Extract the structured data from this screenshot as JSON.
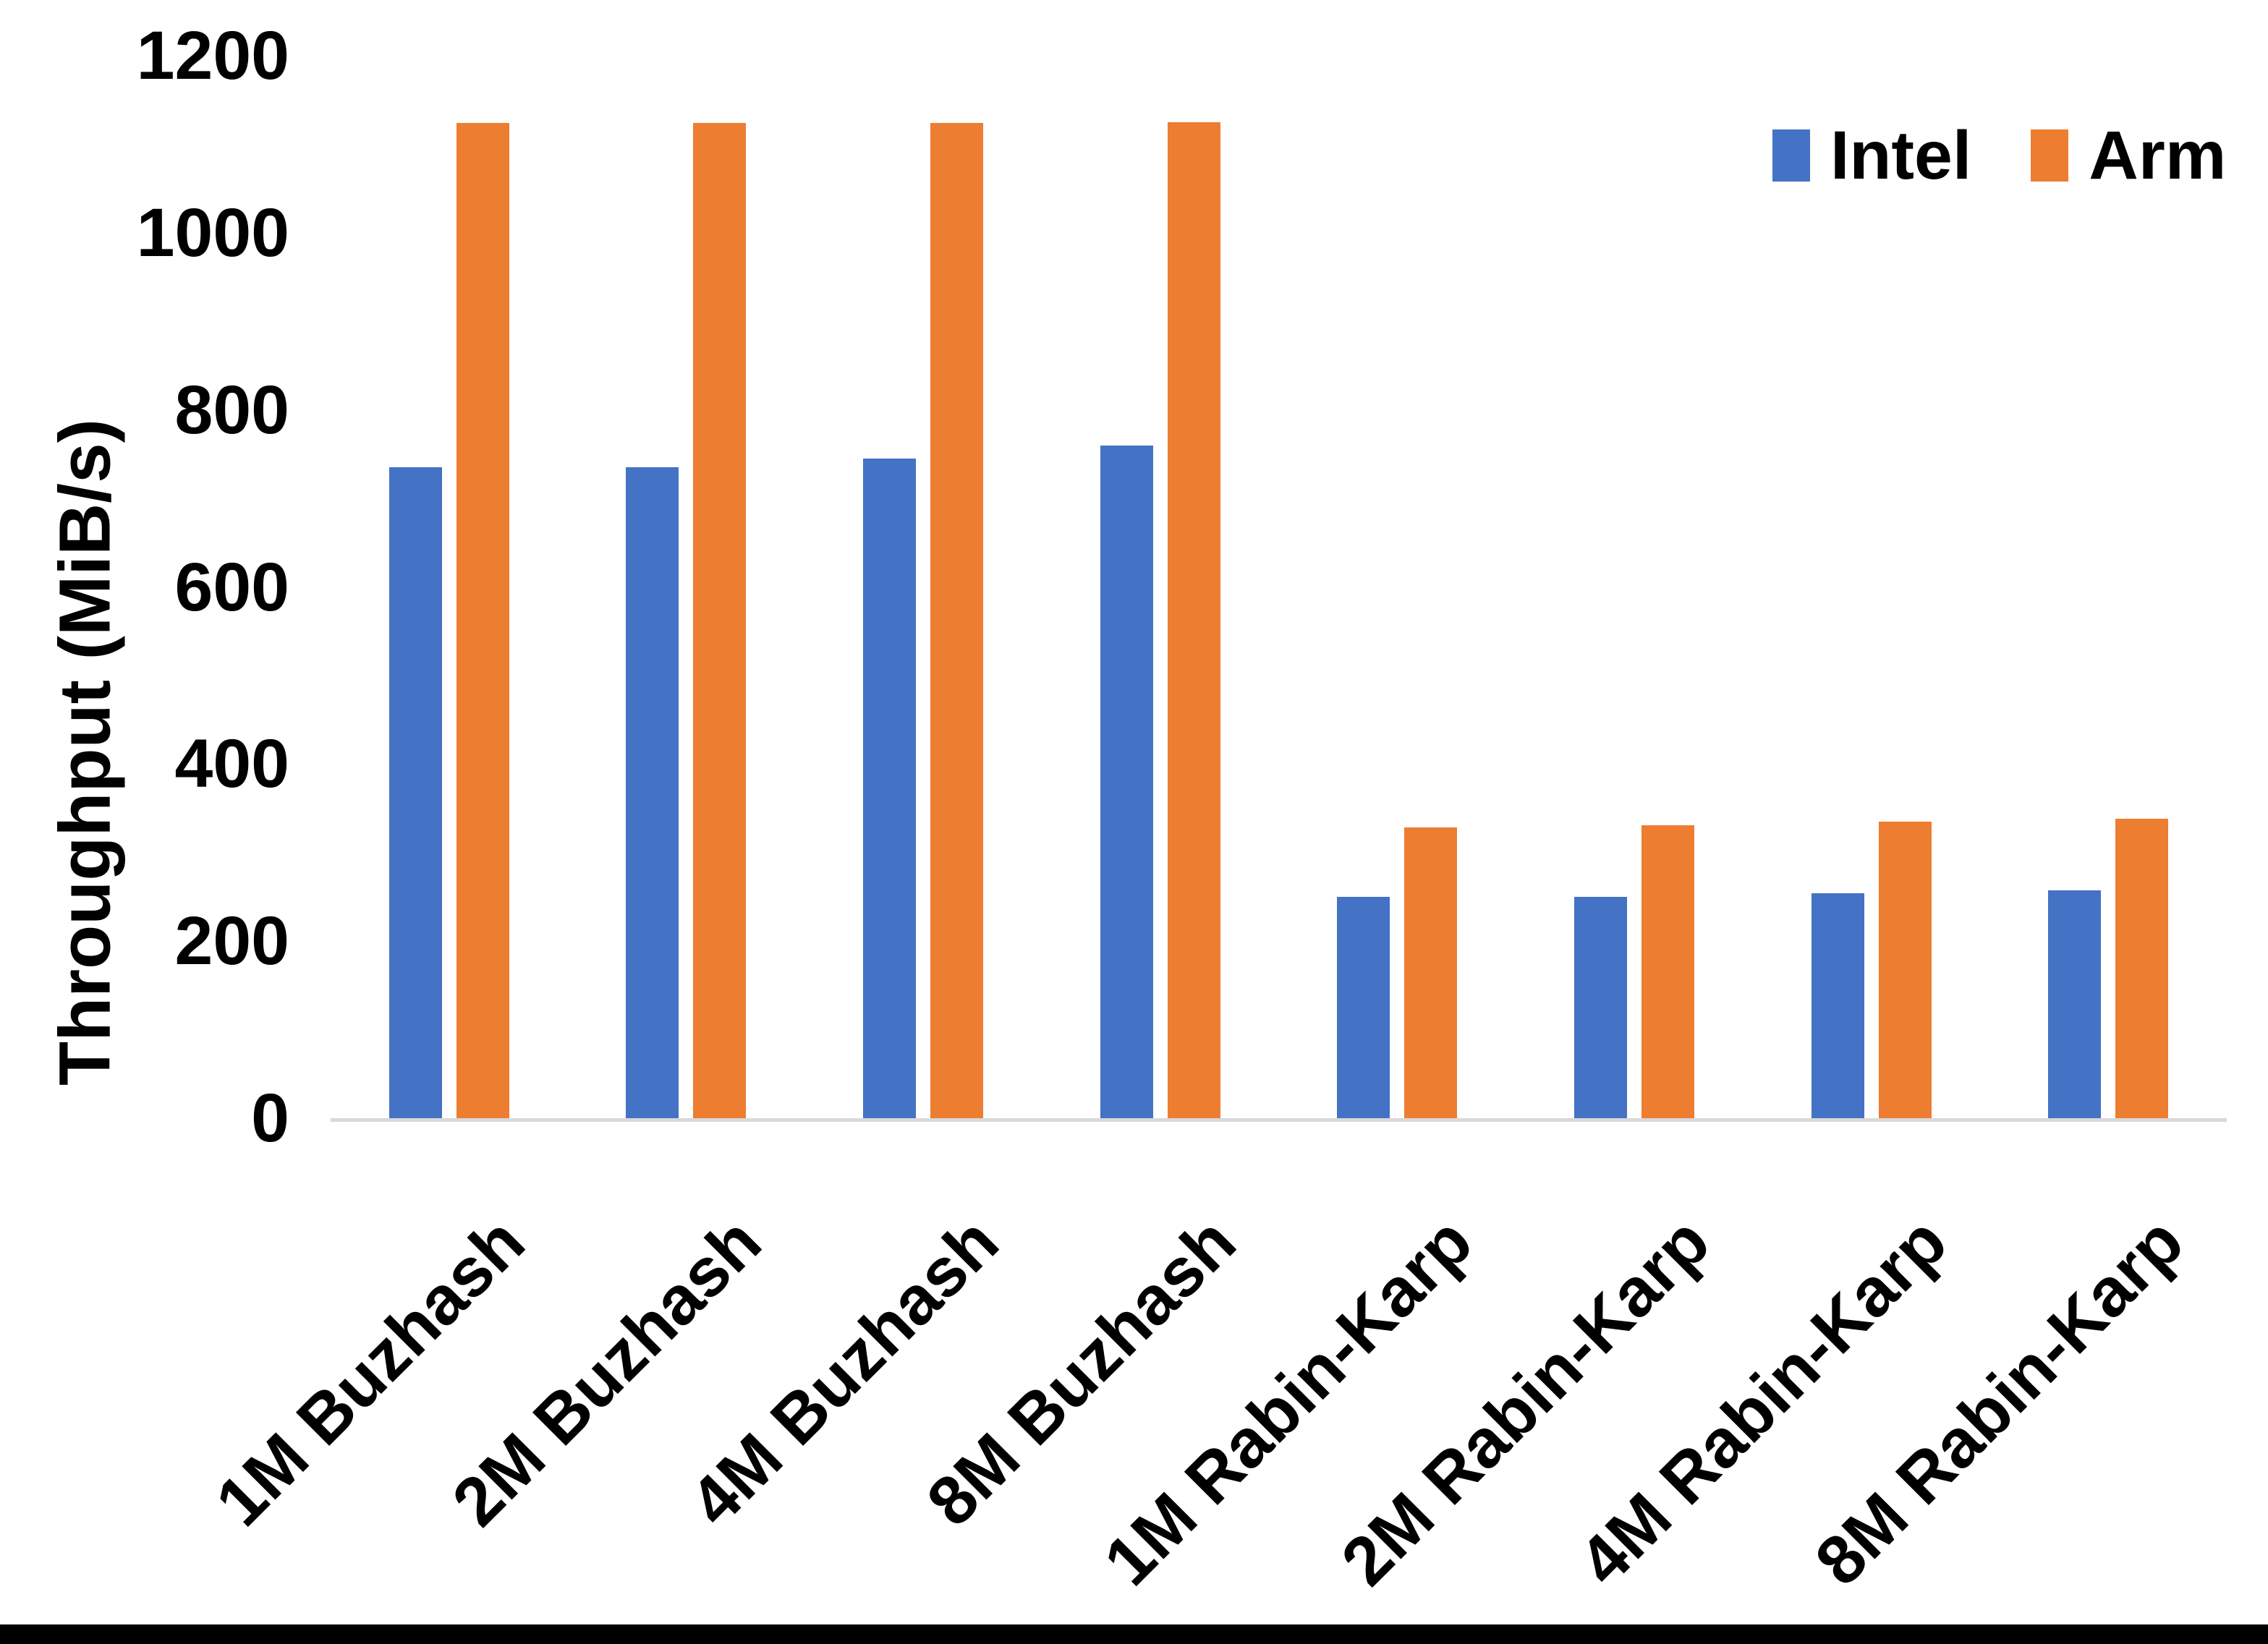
{
  "chart_data": {
    "type": "bar",
    "title": "",
    "xlabel": "",
    "ylabel": "Throughput (MiB/s)",
    "ylim": [
      0,
      1200
    ],
    "yticks": [
      0,
      200,
      400,
      600,
      800,
      1000,
      1200
    ],
    "grid": false,
    "legend_position": "top-right",
    "categories": [
      "1M Buzhash",
      "2M Buzhash",
      "4M Buzhash",
      "8M Buzhash",
      "1M Rabin-Karp",
      "2M Rabin-Karp",
      "4M Rabin-Karp",
      "8M Rabin-Karp"
    ],
    "series": [
      {
        "name": "Intel",
        "color": "#4472C4",
        "values": [
          735,
          735,
          745,
          760,
          250,
          250,
          254,
          257
        ]
      },
      {
        "name": "Arm",
        "color": "#ED7D31",
        "values": [
          1124,
          1124,
          1124,
          1125,
          328,
          331,
          335,
          338
        ]
      }
    ]
  },
  "colors": {
    "background": "#FFFFFF",
    "axis_line": "#D9D9D9",
    "text": "#000000",
    "bottom_border": "#000000"
  }
}
